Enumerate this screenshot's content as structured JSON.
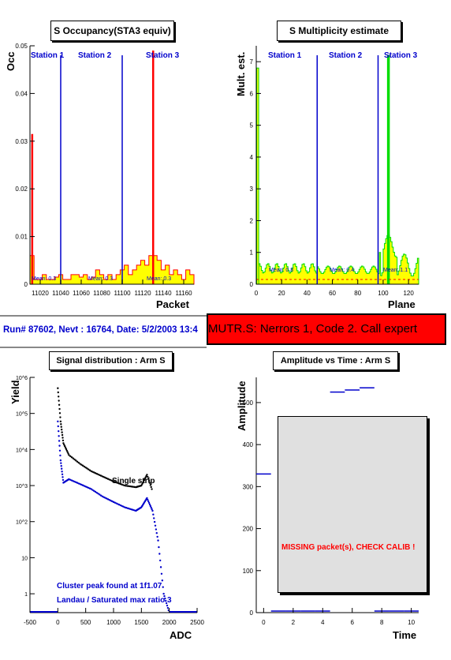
{
  "panels": {
    "occupancy": {
      "title": "S Occupancy(STA3 equiv)",
      "ylabel": "Occ",
      "xlabel": "Packet",
      "yticks": [
        "0.05",
        "0.04",
        "0.03",
        "0.02",
        "0.01",
        "0"
      ],
      "xticks": [
        "11020",
        "11040",
        "11060",
        "11080",
        "11100",
        "11120",
        "11140",
        "11160"
      ],
      "stations": [
        "Station 1",
        "Station 2",
        "Station 3"
      ],
      "means": [
        "Mean: 0.3",
        "Mean: 0.3",
        "Mean: 0.3"
      ]
    },
    "multiplicity": {
      "title": "S Multiplicity estimate",
      "ylabel": "Mult. est.",
      "xlabel": "Plane",
      "yticks": [
        "7",
        "6",
        "5",
        "4",
        "3",
        "2",
        "1",
        "0"
      ],
      "xticks": [
        "0",
        "20",
        "40",
        "60",
        "80",
        "100",
        "120"
      ],
      "stations": [
        "Station 1",
        "Station 2",
        "Station 3"
      ],
      "means": [
        "Mean: 0.8",
        "Mean: 0.4",
        "Mean: 1.1"
      ]
    },
    "signal": {
      "title": "Signal distribution : Arm S",
      "ylabel": "Yield",
      "xlabel": "ADC",
      "yticks": [
        "10^6",
        "10^5",
        "10^4",
        "10^3",
        "10^2",
        "10",
        "1"
      ],
      "xticks": [
        "-500",
        "0",
        "500",
        "1000",
        "1500",
        "2000",
        "2500"
      ],
      "annot_single": "Single strip",
      "annot_peak": "Cluster peak found at 1f1.07",
      "annot_ratio": "Landau / Saturated max ratio 3"
    },
    "amptime": {
      "title": "Amplitude vs Time : Arm S",
      "ylabel": "Amplitude",
      "xlabel": "Time",
      "yticks": [
        "500",
        "400",
        "300",
        "200",
        "100",
        "0"
      ],
      "xticks": [
        "0",
        "2",
        "4",
        "6",
        "8",
        "10"
      ],
      "missing": "MISSING packet(s), CHECK CALIB !"
    }
  },
  "status": {
    "run_info": "Run# 87602,  Nevt : 16764, Date: 5/2/2003 13:4",
    "alert": "MUTR.S: Nerrors 1, Code 2. Call expert"
  },
  "colors": {
    "blue": "#0000cc",
    "red": "#ff0000",
    "yellow": "#ffff00",
    "green": "#00dd00",
    "grey": "#e0e0e0"
  },
  "chart_data": [
    {
      "type": "bar",
      "title": "S Occupancy(STA3 equiv)",
      "xlabel": "Packet",
      "ylabel": "Occ",
      "xlim": [
        11010,
        11170
      ],
      "ylim": [
        0,
        0.05
      ],
      "station_boundaries": [
        11040,
        11100
      ],
      "spikes": [
        {
          "x": 11012,
          "y": 0.0315
        },
        {
          "x": 11130,
          "y": 0.049
        }
      ],
      "series": [
        {
          "name": "occupancy",
          "values": [
            0.0315,
            0.001,
            0.001,
            0.002,
            0.001,
            0.001,
            0.0015,
            0.002,
            0.001,
            0.001,
            0.002,
            0.002,
            0.0015,
            0.002,
            0.001,
            0.0015,
            0.003,
            0.002,
            0.001,
            0.002,
            0.001,
            0.002,
            0.003,
            0.004,
            0.002,
            0.003,
            0.004,
            0.005,
            0.004,
            0.006,
            0.049,
            0.005,
            0.003,
            0.004,
            0.002,
            0.003,
            0.002,
            0.001,
            0.003,
            0.002
          ]
        }
      ]
    },
    {
      "type": "bar",
      "title": "S Multiplicity estimate",
      "xlabel": "Plane",
      "ylabel": "Mult. est.",
      "xlim": [
        0,
        128
      ],
      "ylim": [
        0,
        7.5
      ],
      "station_boundaries": [
        48,
        96
      ],
      "spikes": [
        {
          "x": 1,
          "y": 6.8
        },
        {
          "x": 104,
          "y": 7.2
        }
      ]
    },
    {
      "type": "scatter",
      "title": "Signal distribution : Arm S",
      "xlabel": "ADC",
      "ylabel": "Yield",
      "xlim": [
        -500,
        2500
      ],
      "ylog": true,
      "ylim": [
        0.3,
        1000000
      ],
      "series": [
        {
          "name": "Single strip",
          "x": [
            0,
            50,
            100,
            200,
            400,
            600,
            800,
            1000,
            1200,
            1400,
            1500,
            1600,
            1700
          ],
          "y": [
            500000,
            60000,
            15000,
            7000,
            4000,
            2500,
            1800,
            1300,
            1000,
            900,
            1000,
            2000,
            700
          ]
        },
        {
          "name": "cluster",
          "x": [
            0,
            50,
            100,
            200,
            400,
            600,
            800,
            1000,
            1200,
            1400,
            1500,
            1600,
            1700,
            1800,
            1900,
            2000
          ],
          "y": [
            60000,
            5000,
            1200,
            1500,
            1100,
            800,
            500,
            350,
            250,
            200,
            250,
            450,
            200,
            30,
            1,
            0.3
          ]
        }
      ]
    },
    {
      "type": "line",
      "title": "Amplitude vs Time : Arm S",
      "xlabel": "Time",
      "ylabel": "Amplitude",
      "xlim": [
        -0.5,
        10.5
      ],
      "ylim": [
        0,
        560
      ],
      "series": [
        {
          "name": "amplitude",
          "x": [
            0,
            1,
            2,
            3,
            4,
            5,
            6,
            7,
            8,
            9,
            10
          ],
          "y": [
            330,
            0,
            0,
            0,
            0,
            525,
            530,
            535,
            0,
            0,
            0
          ]
        }
      ]
    }
  ]
}
